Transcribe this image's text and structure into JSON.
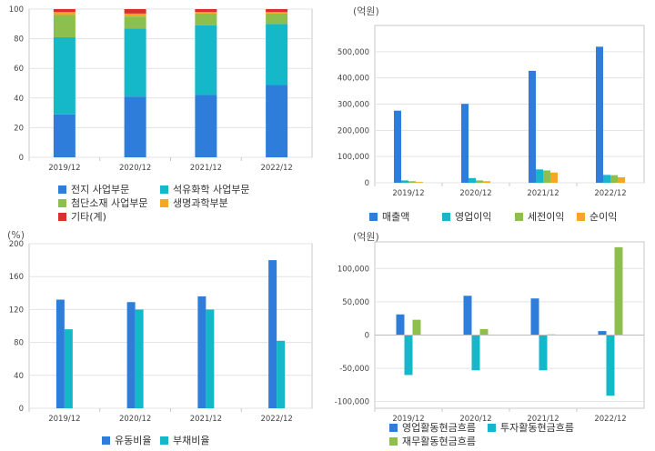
{
  "colors": {
    "blue": "#2f7ddb",
    "cyan": "#15b8c9",
    "green": "#8cbf4e",
    "orange": "#f5a623",
    "red": "#d9302c",
    "grid": "#e3e3e3",
    "frame": "#c8c8c8"
  },
  "chart_data": [
    {
      "type": "bar",
      "stacked": true,
      "categories": [
        "2019/12",
        "2020/12",
        "2021/12",
        "2022/12"
      ],
      "ylim": [
        0,
        100
      ],
      "yticks": [
        "0",
        "20",
        "40",
        "60",
        "80",
        "100"
      ],
      "series": [
        {
          "name": "전지 사업부문",
          "values": [
            29,
            41,
            42,
            49
          ],
          "color": "#2f7ddb"
        },
        {
          "name": "석유화학 사업부문",
          "values": [
            52,
            46,
            47,
            41
          ],
          "color": "#15b8c9"
        },
        {
          "name": "첨단소재 사업부문",
          "values": [
            15,
            8,
            8,
            7
          ],
          "color": "#8cbf4e"
        },
        {
          "name": "생명과학부분",
          "values": [
            2,
            2,
            1,
            1
          ],
          "color": "#f5a623"
        },
        {
          "name": "기타(계)",
          "values": [
            2,
            3,
            2,
            2
          ],
          "color": "#d9302c"
        }
      ]
    },
    {
      "type": "bar",
      "unit": "(억원)",
      "categories": [
        "2019/12",
        "2020/12",
        "2021/12",
        "2022/12"
      ],
      "ylim": [
        0,
        600000
      ],
      "yticks": [
        "0",
        "100,000",
        "200,000",
        "300,000",
        "400,000",
        "500,000"
      ],
      "series": [
        {
          "name": "매출액",
          "values": [
            275000,
            301000,
            427000,
            519000
          ],
          "color": "#2f7ddb"
        },
        {
          "name": "영업이익",
          "values": [
            9000,
            18000,
            51000,
            30000
          ],
          "color": "#15b8c9"
        },
        {
          "name": "세전이익",
          "values": [
            6000,
            9000,
            47000,
            29000
          ],
          "color": "#8cbf4e"
        },
        {
          "name": "순이익",
          "values": [
            3000,
            6000,
            39000,
            21000
          ],
          "color": "#f5a623"
        }
      ]
    },
    {
      "type": "bar",
      "unit": "(%)",
      "categories": [
        "2019/12",
        "2020/12",
        "2021/12",
        "2022/12"
      ],
      "ylim": [
        0,
        200
      ],
      "yticks": [
        "0",
        "40",
        "80",
        "120",
        "160",
        "200"
      ],
      "series": [
        {
          "name": "유동비율",
          "values": [
            132,
            129,
            136,
            180
          ],
          "color": "#2f7ddb"
        },
        {
          "name": "부채비율",
          "values": [
            96,
            120,
            120,
            82
          ],
          "color": "#15b8c9"
        }
      ]
    },
    {
      "type": "bar",
      "unit": "(억원)",
      "categories": [
        "2019/12",
        "2020/12",
        "2021/12",
        "2022/12"
      ],
      "ylim": [
        -110000,
        140000
      ],
      "yticks": [
        "-100,000",
        "-50,000",
        "0",
        "50,000",
        "100,000"
      ],
      "ytick_values": [
        -100000,
        -50000,
        0,
        50000,
        100000
      ],
      "series": [
        {
          "name": "영업활동현금흐름",
          "values": [
            31000,
            59000,
            55000,
            6000
          ],
          "color": "#2f7ddb"
        },
        {
          "name": "투자활동현금흐름",
          "values": [
            -60000,
            -53000,
            -53000,
            -91000
          ],
          "color": "#15b8c9"
        },
        {
          "name": "재무활동현금흐름",
          "values": [
            23000,
            9000,
            1000,
            132000
          ],
          "color": "#8cbf4e"
        }
      ]
    }
  ]
}
